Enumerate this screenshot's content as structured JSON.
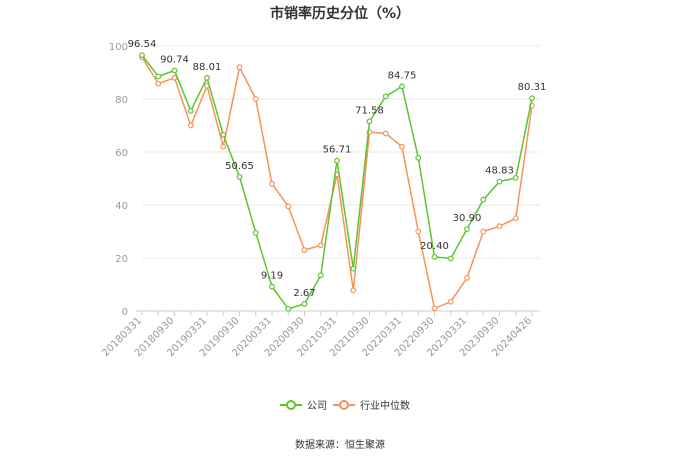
{
  "chart_data": {
    "type": "line",
    "title": "市销率历史分位（%）",
    "ylim": [
      0,
      100
    ],
    "yticks": [
      0,
      20,
      40,
      60,
      80,
      100
    ],
    "categories": [
      "20180331",
      "",
      "20180930",
      "",
      "20190331",
      "",
      "20190930",
      "",
      "20200331",
      "",
      "20200930",
      "",
      "20210331",
      "",
      "20210930",
      "",
      "20220331",
      "",
      "20220930",
      "",
      "20230331",
      "",
      "20230930",
      "",
      "20240426"
    ],
    "tick_labels": [
      "20180331",
      "20180930",
      "20190331",
      "20190930",
      "20200331",
      "20200930",
      "20210331",
      "20210930",
      "20220331",
      "20220930",
      "20230331",
      "20230930",
      "20240426"
    ],
    "series": [
      {
        "name": "公司",
        "color": "#5ec42f",
        "values": [
          96.54,
          88.5,
          90.74,
          75.5,
          88.01,
          66.5,
          50.65,
          29.5,
          9.19,
          0.8,
          2.67,
          13.5,
          56.71,
          16.0,
          71.58,
          81.0,
          84.75,
          57.8,
          20.4,
          19.8,
          30.9,
          42.0,
          48.83,
          50.2,
          80.31
        ]
      },
      {
        "name": "行业中位数",
        "color": "#f7935a",
        "values": [
          95.8,
          85.8,
          88.0,
          70.0,
          85.0,
          62.0,
          92.0,
          80.0,
          48.0,
          39.5,
          23.0,
          24.8,
          51.5,
          7.8,
          67.5,
          67.0,
          62.0,
          30.0,
          1.0,
          3.5,
          12.5,
          30.0,
          32.0,
          35.0,
          77.5
        ]
      }
    ],
    "data_labels": [
      {
        "series": 0,
        "index": 0,
        "text": "96.54"
      },
      {
        "series": 0,
        "index": 2,
        "text": "90.74"
      },
      {
        "series": 0,
        "index": 4,
        "text": "88.01"
      },
      {
        "series": 0,
        "index": 6,
        "text": "50.65"
      },
      {
        "series": 0,
        "index": 8,
        "text": "9.19"
      },
      {
        "series": 0,
        "index": 10,
        "text": "2.67"
      },
      {
        "series": 0,
        "index": 12,
        "text": "56.71"
      },
      {
        "series": 0,
        "index": 14,
        "text": "71.58"
      },
      {
        "series": 0,
        "index": 16,
        "text": "84.75"
      },
      {
        "series": 0,
        "index": 18,
        "text": "20.40"
      },
      {
        "series": 0,
        "index": 20,
        "text": "30.90"
      },
      {
        "series": 0,
        "index": 22,
        "text": "48.83"
      },
      {
        "series": 0,
        "index": 24,
        "text": "80.31"
      }
    ],
    "legend_position": "bottom",
    "grid": true
  },
  "source_text": "数据来源：恒生聚源"
}
